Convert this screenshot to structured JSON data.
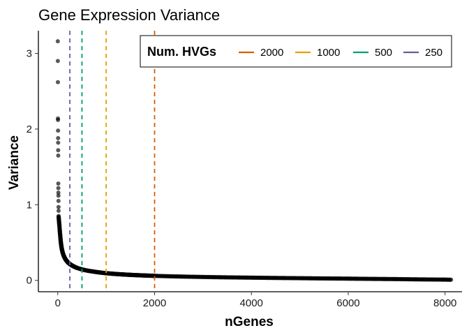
{
  "chart_data": {
    "type": "scatter",
    "title": "Gene Expression Variance",
    "xlabel": "nGenes",
    "ylabel": "Variance",
    "xlim": [
      -400,
      8350
    ],
    "ylim": [
      -0.15,
      3.3
    ],
    "xticks": [
      0,
      2000,
      4000,
      6000,
      8000
    ],
    "yticks": [
      0,
      1,
      2,
      3
    ],
    "grid": false,
    "point_color": "#000000",
    "points_labeled_top": [
      {
        "x": 1,
        "y": 3.16
      },
      {
        "x": 2,
        "y": 2.9
      },
      {
        "x": 3,
        "y": 2.62
      },
      {
        "x": 4,
        "y": 2.14
      },
      {
        "x": 5,
        "y": 2.12
      },
      {
        "x": 6,
        "y": 1.98
      },
      {
        "x": 7,
        "y": 1.88
      },
      {
        "x": 8,
        "y": 1.82
      },
      {
        "x": 9,
        "y": 1.72
      },
      {
        "x": 10,
        "y": 1.65
      },
      {
        "x": 11,
        "y": 1.28
      },
      {
        "x": 12,
        "y": 1.22
      },
      {
        "x": 13,
        "y": 1.16
      },
      {
        "x": 14,
        "y": 1.12
      },
      {
        "x": 15,
        "y": 1.05
      },
      {
        "x": 16,
        "y": 0.97
      },
      {
        "x": 17,
        "y": 0.92
      }
    ],
    "curve": {
      "n_genes": 8130,
      "anchors": [
        {
          "x": 18,
          "y": 0.85
        },
        {
          "x": 25,
          "y": 0.79
        },
        {
          "x": 35,
          "y": 0.72
        },
        {
          "x": 50,
          "y": 0.6
        },
        {
          "x": 75,
          "y": 0.45
        },
        {
          "x": 100,
          "y": 0.37
        },
        {
          "x": 150,
          "y": 0.29
        },
        {
          "x": 200,
          "y": 0.245
        },
        {
          "x": 300,
          "y": 0.195
        },
        {
          "x": 500,
          "y": 0.145
        },
        {
          "x": 750,
          "y": 0.115
        },
        {
          "x": 1000,
          "y": 0.095
        },
        {
          "x": 1500,
          "y": 0.073
        },
        {
          "x": 2000,
          "y": 0.06
        },
        {
          "x": 3000,
          "y": 0.045
        },
        {
          "x": 4000,
          "y": 0.036
        },
        {
          "x": 5000,
          "y": 0.029
        },
        {
          "x": 6000,
          "y": 0.023
        },
        {
          "x": 7000,
          "y": 0.017
        },
        {
          "x": 8000,
          "y": 0.01
        },
        {
          "x": 8130,
          "y": 0.008
        }
      ]
    },
    "vlines": [
      {
        "name": "2000",
        "x": 2000,
        "color": "#d55e00"
      },
      {
        "name": "1000",
        "x": 1000,
        "color": "#e69f00"
      },
      {
        "name": "500",
        "x": 500,
        "color": "#009e73"
      },
      {
        "name": "250",
        "x": 250,
        "color": "#6a5b9a"
      }
    ],
    "legend": {
      "title": "Num. HVGs",
      "placement": "top-right",
      "entries": [
        "2000",
        "1000",
        "500",
        "250"
      ]
    }
  }
}
